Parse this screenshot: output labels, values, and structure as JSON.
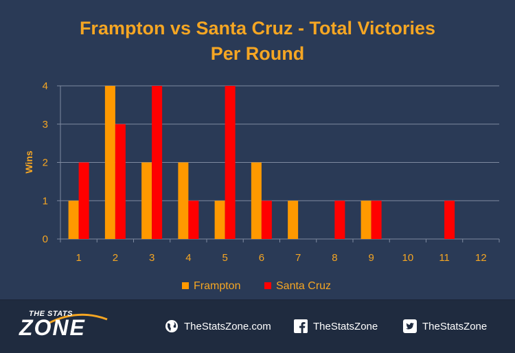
{
  "chart_data": {
    "type": "bar",
    "title": [
      "Frampton vs Santa Cruz - Total Victories",
      "Per Round"
    ],
    "ylabel": "Wins",
    "xlabel": "",
    "categories": [
      "1",
      "2",
      "3",
      "4",
      "5",
      "6",
      "7",
      "8",
      "9",
      "10",
      "11",
      "12"
    ],
    "ylim": [
      0,
      4
    ],
    "yticks": [
      "0",
      "1",
      "2",
      "3",
      "4"
    ],
    "grid": true,
    "legend_position": "bottom",
    "series": [
      {
        "name": "Frampton",
        "color": "#ff9900",
        "values": [
          1,
          4,
          2,
          2,
          1,
          2,
          1,
          0,
          1,
          0,
          0,
          0
        ]
      },
      {
        "name": "Santa Cruz",
        "color": "#ff0000",
        "values": [
          2,
          3,
          4,
          1,
          4,
          1,
          0,
          1,
          1,
          0,
          1,
          0
        ]
      }
    ]
  },
  "footer": {
    "logo_top": "THE STATS",
    "logo_main": "ZONE",
    "website": "TheStatsZone.com",
    "facebook": "TheStatsZone",
    "twitter": "TheStatsZone",
    "website_icon": "globe-icon",
    "facebook_icon": "facebook-icon",
    "twitter_icon": "twitter-icon"
  }
}
